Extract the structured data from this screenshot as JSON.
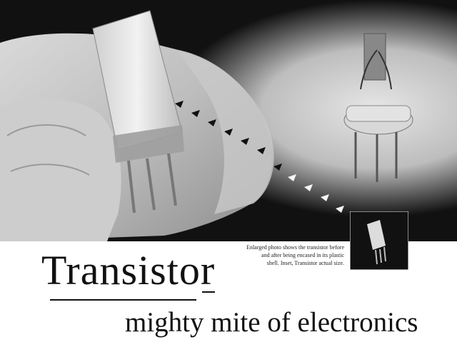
{
  "caption": {
    "line1": "Enlarged photo shows the transistor before",
    "line2": "and after being encased in its plastic",
    "line3": "shell. Inset, Transistor actual size."
  },
  "headline": {
    "title": "Transistor",
    "subtitle": "mighty mite of electronics"
  },
  "photo": {
    "subject": "transistor-photo",
    "inset_subject": "transistor-actual-size-inset"
  }
}
